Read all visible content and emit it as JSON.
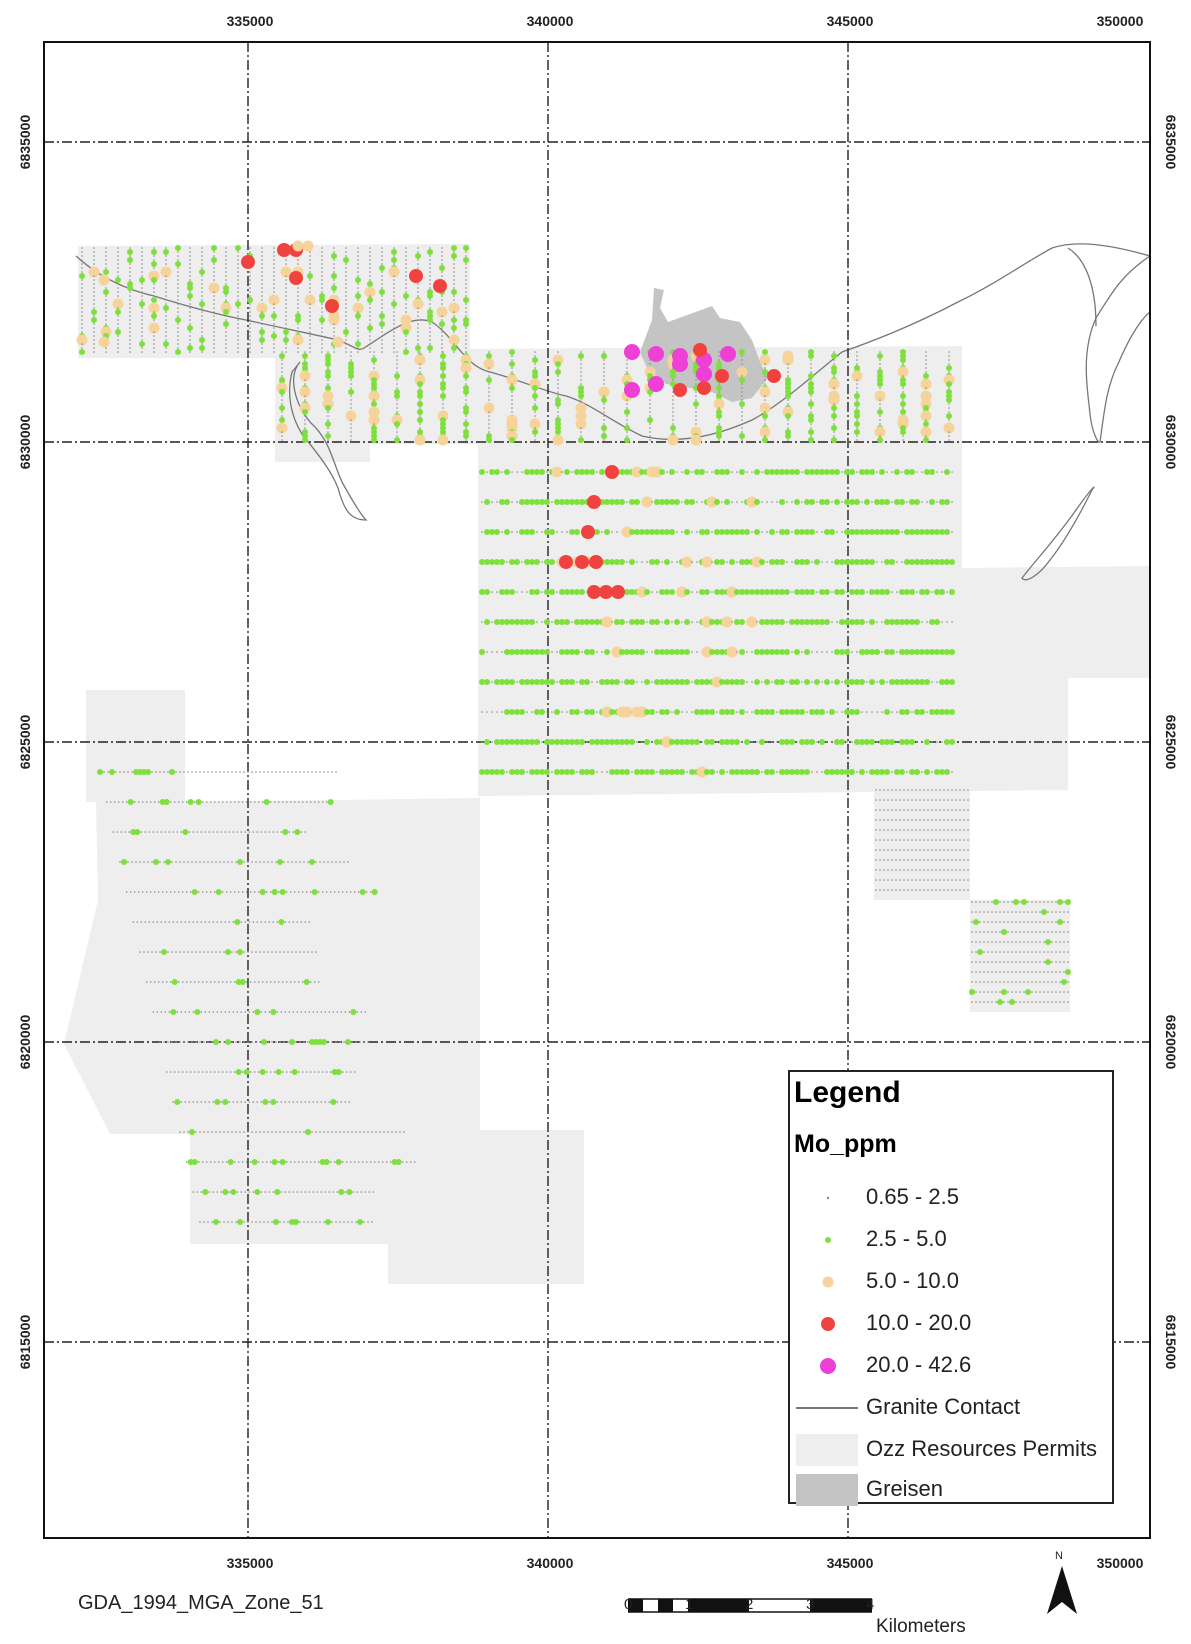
{
  "map": {
    "x_ticks": [
      "335000",
      "340000",
      "345000",
      "350000"
    ],
    "y_ticks": [
      "6835000",
      "6830000",
      "6825000",
      "6820000",
      "6815000"
    ]
  },
  "legend": {
    "title": "Legend",
    "subtitle": "Mo_ppm",
    "items": [
      {
        "label": "0.65 - 2.5",
        "color": "#888888",
        "symbol": "tiny-dot"
      },
      {
        "label": "2.5 - 5.0",
        "color": "#7ee03a",
        "symbol": "small-dot"
      },
      {
        "label": "5.0 - 10.0",
        "color": "#f6d39a",
        "symbol": "medium-dot"
      },
      {
        "label": "10.0 - 20.0",
        "color": "#f0433f",
        "symbol": "large-dot"
      },
      {
        "label": "20.0 - 42.6",
        "color": "#ee3fd6",
        "symbol": "xlarge-dot"
      },
      {
        "label": "Granite Contact",
        "color": "#777777",
        "symbol": "line"
      },
      {
        "label": "Ozz Resources Permits",
        "color": "#eeeeee",
        "symbol": "area"
      },
      {
        "label": "Greisen",
        "color": "#c4c4c4",
        "symbol": "area"
      }
    ]
  },
  "footer": {
    "projection": "GDA_1994_MGA_Zone_51",
    "scale_numbers": [
      "0",
      "1",
      "2",
      "3",
      "4"
    ],
    "scale_unit": "Kilometers",
    "north_label": "N"
  },
  "colors": {
    "permit": "#eeeeee",
    "greisen": "#c4c4c4",
    "contact": "#777777",
    "class1": "#888888",
    "class2": "#7ee03a",
    "class3": "#f6d39a",
    "class4": "#f0433f",
    "class5": "#ee3fd6"
  }
}
